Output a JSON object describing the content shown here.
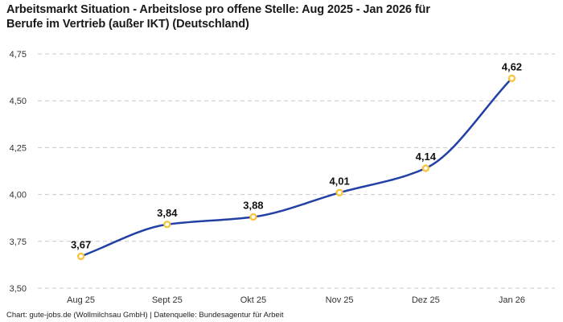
{
  "title": "Arbeitsmarkt Situation - Arbeitslose pro offene Stelle: Aug 2025 - Jan 2026 für\nBerufe im Vertrieb (außer IKT) (Deutschland)",
  "footer": "Chart: gute-jobs.de (Wollmilchsau GmbH) | Datenquelle: Bundesagentur für Arbeit",
  "chart_data": {
    "type": "line",
    "title": "Arbeitsmarkt Situation - Arbeitslose pro offene Stelle: Aug 2025 - Jan 2026 für Berufe im Vertrieb (außer IKT) (Deutschland)",
    "categories": [
      "Aug 25",
      "Sept 25",
      "Okt 25",
      "Nov 25",
      "Dez 25",
      "Jan 26"
    ],
    "values": [
      3.67,
      3.84,
      3.88,
      4.01,
      4.14,
      4.62
    ],
    "value_labels": [
      "3,67",
      "3,84",
      "3,88",
      "4,01",
      "4,14",
      "4,62"
    ],
    "xlabel": "",
    "ylabel": "",
    "ylim": [
      3.5,
      4.75
    ],
    "yticks": [
      4.75,
      4.5,
      4.25,
      4.0,
      3.75,
      3.5
    ],
    "ytick_labels": [
      "4,75",
      "4,50",
      "4,25",
      "4,00",
      "3,75",
      "3,50"
    ],
    "grid": "horizontal-dashed",
    "legend": "none",
    "line_style": "smooth-monotone",
    "marker": "open-circle",
    "colors": {
      "background": "#ffffff",
      "line": "#2341a5",
      "marker_stroke": "#f8c43c",
      "marker_fill": "#ffffff",
      "grid": "#c9c9c9",
      "title_text": "#191919",
      "tick_text": "#333333",
      "value_label_text": "#111111",
      "footer_text": "#222222"
    }
  }
}
